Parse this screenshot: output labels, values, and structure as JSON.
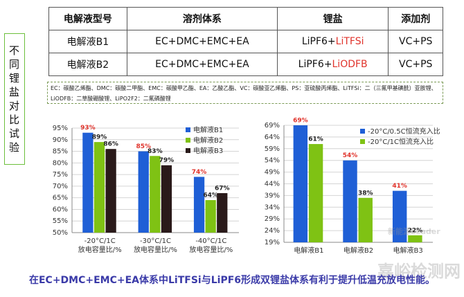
{
  "side_label": "不同锂盐对比试验",
  "table": {
    "header": [
      "电解液型号",
      "溶剂体系",
      "锂盐",
      "添加剂"
    ],
    "rows": [
      [
        "电解液B1",
        "EC+DMC+EMC+EA",
        {
          "text": "LiPF6+",
          "highlight": "LiTFSi"
        },
        "VC+PS"
      ],
      [
        "电解液B2",
        "EC+DMC+EMC+EA",
        {
          "text": "LiPF6+",
          "highlight": "LiODFB"
        },
        "VC+PS"
      ]
    ]
  },
  "note": "EC：碳酸乙烯酯、DMC：碳酸二甲酯、EMC：碳酸甲乙酯、EA：乙酸乙酯、VC：碳酸亚乙烯酯、PS：亚硫酸丙烯酯、LiTFSi：二（三氟甲基磺酰）亚胺锂、LiODFB：二草酸硼酸锂、LiPO2F2：二氟磷酸锂",
  "chart_data": [
    {
      "type": "bar",
      "categories": [
        "-20°C/1C",
        "-30°C/1C",
        "-40°C/1C"
      ],
      "xlabel": "放电容量比/%",
      "series": [
        {
          "name": "电解液B1",
          "color": "#1f5fd6",
          "label_color": "#e0332b",
          "values": [
            93,
            85,
            74
          ],
          "value_labels": [
            "93%",
            "85%",
            "74%"
          ]
        },
        {
          "name": "电解液B2",
          "color": "#7fc214",
          "label_color": "#222222",
          "values": [
            89,
            83,
            64
          ],
          "value_labels": [
            "89%",
            "83%",
            "64%"
          ]
        },
        {
          "name": "电解液B3",
          "color": "#2a1a1a",
          "label_color": "#222222",
          "values": [
            86,
            79,
            67
          ],
          "value_labels": [
            "86%",
            "79%",
            "67%"
          ]
        }
      ],
      "ylim": [
        50,
        95
      ],
      "yticks": [
        {
          "value": 50,
          "label": "50%"
        },
        {
          "value": 55,
          "label": "55%"
        },
        {
          "value": 60,
          "label": "60%"
        },
        {
          "value": 65,
          "label": "65%"
        },
        {
          "value": 70,
          "label": "70%"
        },
        {
          "value": 75,
          "label": "75%"
        },
        {
          "value": 80,
          "label": "80%"
        },
        {
          "value": 85,
          "label": "85%"
        },
        {
          "value": 90,
          "label": "90%"
        },
        {
          "value": 95,
          "label": "95%"
        }
      ],
      "grid": true,
      "legend": "top-right"
    },
    {
      "type": "bar",
      "categories": [
        "电解液B1",
        "电解液B2",
        "电解液B3"
      ],
      "series": [
        {
          "name": "-20°C/0.5C恒流充入比",
          "color": "#1f5fd6",
          "label_color": "#e0332b",
          "values": [
            69,
            54,
            41
          ],
          "value_labels": [
            "69%",
            "54%",
            "41%"
          ]
        },
        {
          "name": "-20°C/1C恒流充入比",
          "color": "#7fc214",
          "label_color": "#222222",
          "values": [
            61,
            38,
            22
          ],
          "value_labels": [
            "61%",
            "38%",
            "22%"
          ]
        }
      ],
      "ylim": [
        19,
        69
      ],
      "yticks": [
        {
          "value": 19,
          "label": "19%"
        },
        {
          "value": 24,
          "label": "24%"
        },
        {
          "value": 29,
          "label": "29%"
        },
        {
          "value": 34,
          "label": "34%"
        },
        {
          "value": 39,
          "label": "39%"
        },
        {
          "value": 44,
          "label": "44%"
        },
        {
          "value": 49,
          "label": "49%"
        },
        {
          "value": 54,
          "label": "54%"
        },
        {
          "value": 59,
          "label": "59%"
        },
        {
          "value": 64,
          "label": "64%"
        },
        {
          "value": 69,
          "label": "69%"
        }
      ],
      "grid": true,
      "legend": "top-right"
    }
  ],
  "caption": "在EC+DMC+EMC+EA体系中LiTFSi与LiPF6形成双锂盐体系有利于提升低温充放电性能。",
  "watermark": [
    "嘉峪检测网",
    "新能源Leader"
  ]
}
